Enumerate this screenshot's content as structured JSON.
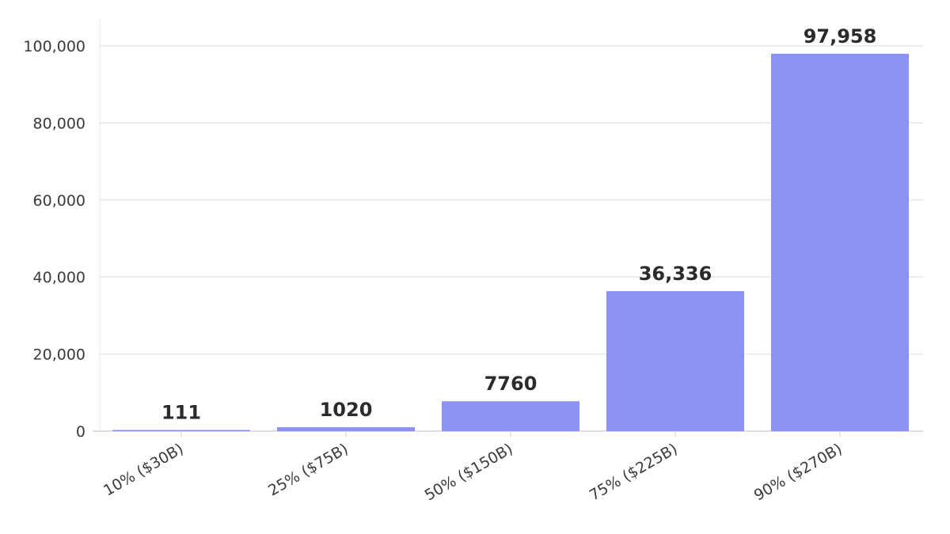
{
  "chart_data": {
    "type": "bar",
    "categories": [
      "10% ($30B)",
      "25% ($75B)",
      "50% ($150B)",
      "75% ($225B)",
      "90% ($270B)"
    ],
    "values": [
      111,
      1020,
      7760,
      36336,
      97958
    ],
    "value_labels": [
      "111",
      "1020",
      "7760",
      "36,336",
      "97,958"
    ],
    "y_ticks": [
      0,
      20000,
      40000,
      60000,
      80000,
      100000
    ],
    "y_tick_labels": [
      "0",
      "20,000",
      "40,000",
      "60,000",
      "80,000",
      "100,000"
    ],
    "ylim": [
      0,
      100000
    ],
    "grid": true,
    "bar_color": "#8b92f1",
    "title": "",
    "xlabel": "",
    "ylabel": ""
  }
}
